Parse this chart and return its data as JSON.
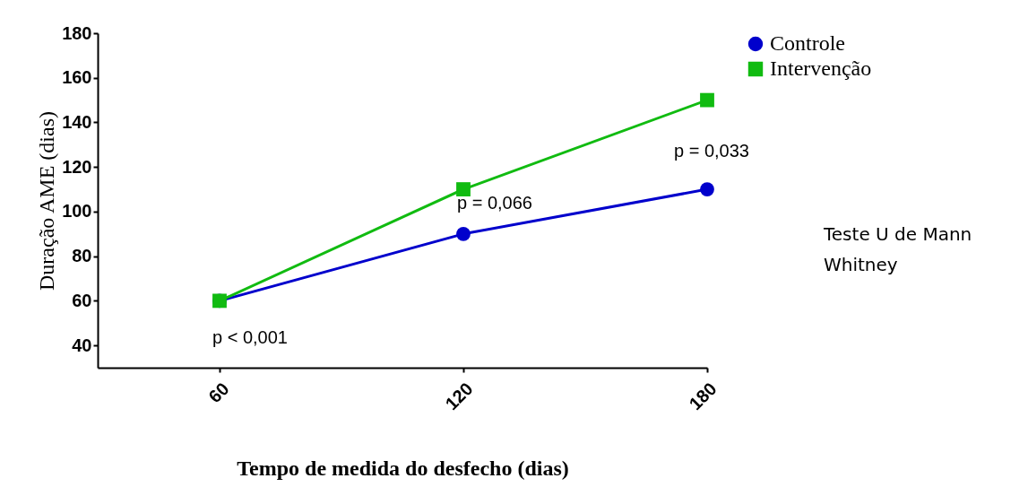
{
  "chart_data": {
    "type": "line",
    "xlabel": "Tempo de medida do desfecho (dias)",
    "ylabel": "Duração AME (dias)",
    "x": [
      60,
      120,
      180
    ],
    "xlim": [
      30,
      180
    ],
    "xticks": [
      60,
      120,
      180
    ],
    "ylim": [
      30,
      180
    ],
    "yticks": [
      40,
      60,
      80,
      100,
      120,
      140,
      160,
      180
    ],
    "grid": false,
    "legend": "top right",
    "series": [
      {
        "name": "Controle",
        "color": "#0000cc",
        "marker": "circle",
        "values": [
          60,
          90,
          110
        ]
      },
      {
        "name": "Intervenção",
        "color": "#11bb11",
        "marker": "square",
        "values": [
          60,
          110,
          150
        ]
      }
    ],
    "annotations": [
      "p < 0,001",
      "p = 0,066",
      "p = 0,033",
      "Teste U de Mann Whitney"
    ]
  }
}
